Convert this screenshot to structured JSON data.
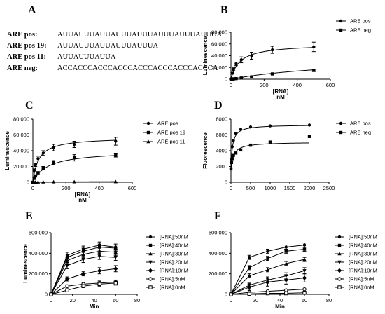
{
  "panel_letters": [
    "A",
    "B",
    "C",
    "D",
    "E",
    "F"
  ],
  "panel_a": {
    "rows": [
      {
        "label": "ARE pos:",
        "sequence": "AUUAUUUAUUAUUUAUUUAUUUAUUUAUUUA"
      },
      {
        "label": "ARE pos 19:",
        "sequence": "AUUAUUUAUUAUUUAUUUA"
      },
      {
        "label": "ARE pos 11:",
        "sequence": "AUUAUUUAUUA"
      },
      {
        "label": "ARE neg:",
        "sequence": "ACCACCCACCCACCCACCCACCCACCCACCCA"
      }
    ]
  },
  "chart_data": [
    {
      "panel": "B",
      "type": "scatter",
      "xlabel": "[RNA]\nnM",
      "ylabel": "Luminescence",
      "xlim": [
        0,
        600
      ],
      "ylim": [
        0,
        80000
      ],
      "xticks": [
        0,
        200,
        400,
        600
      ],
      "yticks": [
        0,
        20000,
        40000,
        60000,
        80000
      ],
      "ytick_labels": [
        "0",
        "20,000",
        "40,000",
        "60,000",
        "80,000"
      ],
      "legend_position": "top-right",
      "series": [
        {
          "name": "ARE pos",
          "marker": "circle",
          "x": [
            0,
            7.8,
            15.6,
            31.2,
            62.5,
            125,
            250,
            500
          ],
          "y": [
            500,
            10000,
            17000,
            26000,
            33000,
            40000,
            50000,
            55000
          ],
          "err": [
            0,
            1500,
            2500,
            3000,
            5000,
            6000,
            6000,
            8000
          ],
          "fit": {
            "model": "hyperbola",
            "bmax": 60000,
            "kd": 55
          }
        },
        {
          "name": "ARE neg",
          "marker": "square",
          "x": [
            0,
            7.8,
            15.6,
            31.2,
            62.5,
            125,
            250,
            500
          ],
          "y": [
            0,
            300,
            600,
            1000,
            2000,
            4000,
            9000,
            15000
          ],
          "err": [
            0,
            0,
            0,
            200,
            400,
            600,
            1000,
            2000
          ],
          "fit": {
            "model": "hyperbola",
            "bmax": 40000,
            "kd": 750
          }
        }
      ]
    },
    {
      "panel": "C",
      "type": "scatter",
      "xlabel": "[RNA]\nnM",
      "ylabel": "Luminescence",
      "xlim": [
        0,
        600
      ],
      "ylim": [
        0,
        80000
      ],
      "xticks": [
        0,
        200,
        400,
        600
      ],
      "yticks": [
        0,
        20000,
        40000,
        60000,
        80000
      ],
      "ytick_labels": [
        "0",
        "20,000",
        "40,000",
        "60,000",
        "80,000"
      ],
      "legend_position": "top-right",
      "series": [
        {
          "name": "ARE pos",
          "marker": "circle",
          "x": [
            0,
            7.8,
            15.6,
            31.2,
            62.5,
            125,
            250,
            500
          ],
          "y": [
            0,
            15000,
            22000,
            30000,
            37000,
            44000,
            48000,
            52000
          ],
          "err": [
            0,
            2000,
            2000,
            3000,
            3000,
            4000,
            4000,
            5000
          ],
          "fit": {
            "model": "hyperbola",
            "bmax": 57000,
            "kd": 35
          }
        },
        {
          "name": "ARE pos 19",
          "marker": "square",
          "x": [
            0,
            7.8,
            15.6,
            31.2,
            62.5,
            125,
            250,
            500
          ],
          "y": [
            0,
            5000,
            8000,
            12000,
            18000,
            25000,
            31000,
            34000
          ],
          "err": [
            0,
            1000,
            1000,
            1500,
            2000,
            2500,
            4000,
            2000
          ],
          "fit": {
            "model": "hyperbola",
            "bmax": 40000,
            "kd": 90
          }
        },
        {
          "name": "ARE pos 11",
          "marker": "triangle",
          "x": [
            0,
            7.8,
            15.6,
            31.2,
            62.5,
            125,
            250,
            500
          ],
          "y": [
            0,
            100,
            200,
            300,
            400,
            500,
            600,
            700
          ],
          "err": [
            0,
            0,
            0,
            0,
            0,
            0,
            0,
            0
          ],
          "fit": {
            "model": "hyperbola",
            "bmax": 1500,
            "kd": 500
          }
        }
      ]
    },
    {
      "panel": "D",
      "type": "scatter",
      "xlabel": "",
      "ylabel": "Fluorescence",
      "xlim": [
        0,
        2500
      ],
      "ylim": [
        0,
        8000
      ],
      "xticks": [
        0,
        500,
        1000,
        1500,
        2000,
        2500
      ],
      "yticks": [
        0,
        2000,
        4000,
        6000,
        8000
      ],
      "ytick_labels": [
        "0",
        "2000",
        "4000",
        "6000",
        "8000"
      ],
      "legend_position": "top-right",
      "series": [
        {
          "name": "ARE pos",
          "marker": "circle",
          "x": [
            0,
            15.6,
            31.2,
            62.5,
            125,
            250,
            500,
            1000,
            2000
          ],
          "y": [
            1700,
            2900,
            4500,
            5300,
            6200,
            6700,
            7000,
            7150,
            7250
          ],
          "err": [
            0,
            0,
            0,
            0,
            0,
            0,
            0,
            0,
            0
          ],
          "fit": {
            "model": "offset-hyperbola",
            "base": 1700,
            "bmax": 5600,
            "kd": 40
          }
        },
        {
          "name": "ARE neg",
          "marker": "square",
          "x": [
            0,
            15.6,
            31.2,
            62.5,
            125,
            250,
            500,
            1000,
            2000
          ],
          "y": [
            1700,
            2500,
            3000,
            3400,
            3700,
            4100,
            4700,
            5100,
            5800
          ],
          "err": [
            0,
            0,
            0,
            0,
            0,
            0,
            0,
            0,
            0
          ],
          "fit": {
            "model": "offset-hyperbola",
            "base": 1700,
            "bmax": 3400,
            "kd": 70
          }
        }
      ]
    },
    {
      "panel": "E",
      "type": "scatter",
      "xlabel": "Min",
      "ylabel": "Luminescence",
      "xlim": [
        0,
        80
      ],
      "ylim": [
        0,
        600000
      ],
      "xticks": [
        0,
        20,
        40,
        60,
        80
      ],
      "yticks": [
        0,
        200000,
        400000,
        600000
      ],
      "ytick_labels": [
        "0",
        "200,000",
        "400,000",
        "600,000"
      ],
      "legend_position": "right",
      "series": [
        {
          "name": "[RNA]:50nM",
          "marker": "circle",
          "x": [
            0,
            15,
            30,
            45,
            60
          ],
          "y": [
            0,
            380000,
            440000,
            480000,
            460000
          ],
          "err": [
            0,
            30000,
            30000,
            30000,
            30000
          ]
        },
        {
          "name": "[RNA]:40nM",
          "marker": "square",
          "x": [
            0,
            15,
            30,
            45,
            60
          ],
          "y": [
            0,
            360000,
            420000,
            460000,
            450000
          ],
          "err": [
            0,
            30000,
            30000,
            30000,
            30000
          ]
        },
        {
          "name": "[RNA]:30nM",
          "marker": "triangle",
          "x": [
            0,
            15,
            30,
            45,
            60
          ],
          "y": [
            0,
            330000,
            390000,
            420000,
            410000
          ],
          "err": [
            0,
            30000,
            30000,
            30000,
            30000
          ]
        },
        {
          "name": "[RNA]:20nM",
          "marker": "triangle-down",
          "x": [
            0,
            15,
            30,
            45,
            60
          ],
          "y": [
            0,
            280000,
            340000,
            370000,
            360000
          ],
          "err": [
            0,
            30000,
            30000,
            30000,
            30000
          ]
        },
        {
          "name": "[RNA]:10nM",
          "marker": "diamond",
          "x": [
            0,
            15,
            30,
            45,
            60
          ],
          "y": [
            0,
            150000,
            200000,
            230000,
            250000
          ],
          "err": [
            0,
            20000,
            20000,
            30000,
            30000
          ]
        },
        {
          "name": "[RNA]:5nM",
          "marker": "open-circle",
          "x": [
            0,
            15,
            30,
            45,
            60
          ],
          "y": [
            0,
            80000,
            100000,
            110000,
            120000
          ],
          "err": [
            0,
            10000,
            15000,
            20000,
            20000
          ]
        },
        {
          "name": "[RNA]:0nM",
          "marker": "open-square",
          "x": [
            0,
            15,
            30,
            45,
            60
          ],
          "y": [
            0,
            40000,
            80000,
            100000,
            110000
          ],
          "err": [
            0,
            10000,
            10000,
            20000,
            20000
          ]
        }
      ]
    },
    {
      "panel": "F",
      "type": "scatter",
      "xlabel": "Min",
      "ylabel": "",
      "xlim": [
        0,
        80
      ],
      "ylim": [
        0,
        600000
      ],
      "xticks": [
        0,
        20,
        40,
        60,
        80
      ],
      "yticks": [
        0,
        200000,
        400000,
        600000
      ],
      "ytick_labels": [
        "0",
        "200,000",
        "400,000",
        "600,000"
      ],
      "legend_position": "right",
      "series": [
        {
          "name": "[RNA]:50nM",
          "marker": "circle",
          "x": [
            0,
            15,
            30,
            45,
            60
          ],
          "y": [
            0,
            360000,
            420000,
            460000,
            480000
          ],
          "err": [
            0,
            20000,
            20000,
            20000,
            20000
          ]
        },
        {
          "name": "[RNA]:40nM",
          "marker": "square",
          "x": [
            0,
            15,
            30,
            45,
            60
          ],
          "y": [
            0,
            260000,
            350000,
            420000,
            440000
          ],
          "err": [
            0,
            20000,
            20000,
            20000,
            20000
          ]
        },
        {
          "name": "[RNA]:30nM",
          "marker": "triangle",
          "x": [
            0,
            15,
            30,
            45,
            60
          ],
          "y": [
            0,
            180000,
            240000,
            300000,
            340000
          ],
          "err": [
            0,
            20000,
            20000,
            20000,
            20000
          ]
        },
        {
          "name": "[RNA]:20nM",
          "marker": "triangle-down",
          "x": [
            0,
            15,
            30,
            45,
            60
          ],
          "y": [
            0,
            90000,
            140000,
            180000,
            230000
          ],
          "err": [
            0,
            20000,
            30000,
            30000,
            30000
          ]
        },
        {
          "name": "[RNA]:10nM",
          "marker": "diamond",
          "x": [
            0,
            15,
            30,
            45,
            60
          ],
          "y": [
            0,
            70000,
            120000,
            140000,
            160000
          ],
          "err": [
            0,
            30000,
            40000,
            40000,
            40000
          ]
        },
        {
          "name": "[RNA]:5nM",
          "marker": "open-circle",
          "x": [
            0,
            15,
            30,
            45,
            60
          ],
          "y": [
            0,
            20000,
            30000,
            40000,
            50000
          ],
          "err": [
            0,
            0,
            0,
            0,
            0
          ]
        },
        {
          "name": "[RNA]:0nM",
          "marker": "open-square",
          "x": [
            0,
            15,
            30,
            45,
            60
          ],
          "y": [
            0,
            5000,
            10000,
            10000,
            15000
          ],
          "err": [
            0,
            0,
            0,
            0,
            0
          ]
        }
      ]
    }
  ]
}
